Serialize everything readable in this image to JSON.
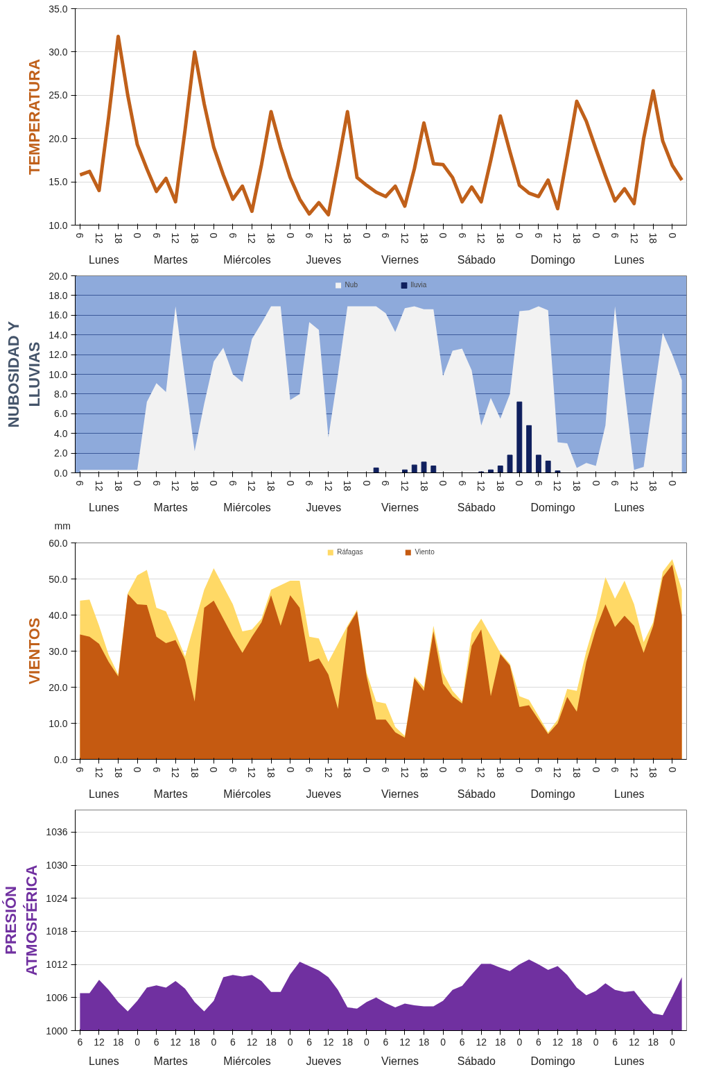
{
  "chart_data": [
    {
      "type": "line",
      "ylabel": "TEMPERATURA",
      "color": "#c0601a",
      "grid": "y",
      "ylim": [
        10,
        35
      ],
      "yticks": [
        {
          "value": 10,
          "label": "10.0"
        },
        {
          "value": 15,
          "label": "15.0"
        },
        {
          "value": 20,
          "label": "20.0"
        },
        {
          "value": 25,
          "label": "25.0"
        },
        {
          "value": 30,
          "label": "30.0"
        },
        {
          "value": 35,
          "label": "35.0"
        }
      ],
      "categories": [
        "6",
        null,
        "12",
        null,
        "18",
        null,
        "0",
        null,
        "6",
        null,
        "12",
        null,
        "18",
        null,
        "0",
        null,
        "6",
        null,
        "12",
        null,
        "18",
        null,
        "0",
        null,
        "6",
        null,
        "12",
        null,
        "18",
        null,
        "0",
        null,
        "6",
        null,
        "12",
        null,
        "18",
        null,
        "0",
        null,
        "6",
        null,
        "12",
        null,
        "18",
        null,
        "0",
        null,
        "6",
        null,
        "12",
        null,
        "18",
        null,
        "0",
        null,
        "6",
        null,
        "12",
        null,
        "18",
        null,
        "0",
        null
      ],
      "values": [
        15.8,
        16.2,
        14.0,
        22.5,
        31.8,
        25.0,
        19.3,
        16.5,
        13.9,
        15.4,
        12.7,
        21.0,
        30.0,
        24.0,
        19.0,
        15.8,
        13.0,
        14.5,
        11.6,
        17.0,
        23.1,
        19.0,
        15.5,
        13.0,
        11.3,
        12.6,
        11.2,
        17.0,
        23.1,
        15.5,
        14.6,
        13.8,
        13.3,
        14.5,
        12.2,
        16.5,
        21.8,
        17.1,
        17.0,
        15.5,
        12.7,
        14.4,
        12.7,
        17.5,
        22.6,
        18.5,
        14.6,
        13.7,
        13.3,
        15.2,
        11.9,
        18.0,
        24.3,
        22.0,
        18.8,
        15.7,
        12.8,
        14.2,
        12.5,
        20.0,
        25.5,
        19.7,
        16.9,
        15.2
      ],
      "annotations": [
        "Lunes",
        "Martes",
        "Miércoles",
        "Jueves",
        "Viernes",
        "Sábado",
        "Domingo",
        "Lunes"
      ]
    },
    {
      "type": "area",
      "ylabel": "NUBOSIDAD Y\nLLUVIAS",
      "grid": "y",
      "legend": "top",
      "ylim": [
        0,
        20
      ],
      "yticks": [
        {
          "value": 0,
          "label": "0.0"
        },
        {
          "value": 2,
          "label": "2.0"
        },
        {
          "value": 4,
          "label": "4.0"
        },
        {
          "value": 6,
          "label": "6.0"
        },
        {
          "value": 8,
          "label": "8.0"
        },
        {
          "value": 10,
          "label": "10.0"
        },
        {
          "value": 12,
          "label": "12.0"
        },
        {
          "value": 14,
          "label": "14.0"
        },
        {
          "value": 16,
          "label": "16.0"
        },
        {
          "value": 18,
          "label": "18.0"
        },
        {
          "value": 20,
          "label": "20.0"
        }
      ],
      "categories": [
        "6",
        null,
        "12",
        null,
        "18",
        null,
        "0",
        null,
        "6",
        null,
        "12",
        null,
        "18",
        null,
        "0",
        null,
        "6",
        null,
        "12",
        null,
        "18",
        null,
        "0",
        null,
        "6",
        null,
        "12",
        null,
        "18",
        null,
        "0",
        null,
        "6",
        null,
        "12",
        null,
        "18",
        null,
        "0",
        null,
        "6",
        null,
        "12",
        null,
        "18",
        null,
        "0",
        null,
        "6",
        null,
        "12",
        null,
        "18",
        null,
        "0",
        null,
        "6",
        null,
        "12",
        null,
        "18",
        null,
        "0",
        null
      ],
      "series": [
        {
          "name": "Nub",
          "type": "area",
          "color": "#f2f2f2",
          "values": [
            0.3,
            0.3,
            0.3,
            0.3,
            0.3,
            0.3,
            0.3,
            7.2,
            9.1,
            8.2,
            16.9,
            9.5,
            2.2,
            7.0,
            11.3,
            12.7,
            10.0,
            9.2,
            13.6,
            15.2,
            16.9,
            16.9,
            7.4,
            8.0,
            15.3,
            14.5,
            3.6,
            10.0,
            16.9,
            16.9,
            16.9,
            16.9,
            16.2,
            14.3,
            16.7,
            16.9,
            16.6,
            16.6,
            9.8,
            12.4,
            12.6,
            10.4,
            4.8,
            7.6,
            5.5,
            8.0,
            16.4,
            16.5,
            16.9,
            16.5,
            3.1,
            3.0,
            0.5,
            1.0,
            0.7,
            4.8,
            16.9,
            8.5,
            0.3,
            0.6,
            7.5,
            14.2,
            12.0,
            9.4
          ]
        },
        {
          "name": "lluvia",
          "type": "bar",
          "color": "#10205e",
          "values": [
            null,
            null,
            null,
            null,
            null,
            null,
            null,
            null,
            null,
            null,
            null,
            null,
            null,
            null,
            null,
            null,
            null,
            null,
            null,
            null,
            null,
            null,
            null,
            null,
            null,
            null,
            null,
            null,
            null,
            null,
            null,
            0.5,
            null,
            null,
            0.3,
            0.8,
            1.1,
            0.7,
            null,
            null,
            null,
            null,
            0.1,
            0.3,
            0.7,
            1.8,
            7.2,
            4.8,
            1.8,
            1.2,
            0.2,
            null,
            null,
            null,
            null,
            null,
            null,
            null,
            null,
            null,
            null,
            null,
            null,
            null
          ]
        }
      ],
      "annotations": [
        "Lunes",
        "Martes",
        "Miércoles",
        "Jueves",
        "Viernes",
        "Sábado",
        "Domingo",
        "Lunes",
        "mm"
      ]
    },
    {
      "type": "area",
      "ylabel": "VIENTOS",
      "grid": "y",
      "legend": "top",
      "ylim": [
        0,
        60
      ],
      "yticks": [
        {
          "value": 0,
          "label": "0.0"
        },
        {
          "value": 10,
          "label": "10.0"
        },
        {
          "value": 20,
          "label": "20.0"
        },
        {
          "value": 30,
          "label": "30.0"
        },
        {
          "value": 40,
          "label": "40.0"
        },
        {
          "value": 50,
          "label": "50.0"
        },
        {
          "value": 60,
          "label": "60.0"
        }
      ],
      "categories": [
        "6",
        null,
        "12",
        null,
        "18",
        null,
        "0",
        null,
        "6",
        null,
        "12",
        null,
        "18",
        null,
        "0",
        null,
        "6",
        null,
        "12",
        null,
        "18",
        null,
        "0",
        null,
        "6",
        null,
        "12",
        null,
        "18",
        null,
        "0",
        null,
        "6",
        null,
        "12",
        null,
        "18",
        null,
        "0",
        null,
        "6",
        null,
        "12",
        null,
        "18",
        null,
        "0",
        null,
        "6",
        null,
        "12",
        null,
        "18",
        null,
        "0",
        null,
        "6",
        null,
        "12",
        null,
        "18",
        null,
        "0",
        null
      ],
      "series": [
        {
          "name": "Ráfagas",
          "color": "#ffd966",
          "values": [
            44.0,
            44.3,
            37,
            29,
            23.5,
            46,
            51,
            52.5,
            42,
            41,
            35,
            28.5,
            null,
            47,
            53,
            48,
            43,
            35.5,
            36,
            39,
            47,
            null,
            49.5,
            49.5,
            34,
            33.5,
            27,
            null,
            37,
            41.5,
            24,
            16,
            15.5,
            9,
            6.5,
            23,
            20,
            37,
            24,
            19,
            16,
            35,
            39,
            null,
            29.5,
            26.5,
            17.5,
            16.5,
            12,
            7.5,
            11,
            19.5,
            19,
            30,
            39,
            50.5,
            44.5,
            49.5,
            43,
            32.5,
            38,
            52,
            55.5,
            47
          ]
        },
        {
          "name": "Viento",
          "color": "#c55a11",
          "values": [
            34.6,
            34.0,
            32.0,
            27.0,
            23.0,
            45.8,
            43.0,
            42.8,
            34.0,
            32.2,
            33.1,
            27.6,
            16.0,
            42.0,
            44.0,
            39.0,
            34.0,
            29.5,
            34.0,
            38.0,
            45.5,
            37.0,
            45.5,
            42.0,
            27.0,
            28.0,
            23.5,
            14.0,
            36.5,
            41.0,
            23.0,
            11.0,
            11.0,
            7.5,
            6.0,
            22.5,
            19.0,
            35.5,
            21.0,
            17.5,
            15.5,
            31.5,
            36.0,
            17.5,
            29.2,
            26.0,
            14.5,
            15.0,
            11.0,
            7.0,
            10.0,
            17.3,
            13.2,
            27.0,
            36.0,
            43.0,
            36.7,
            39.8,
            37.0,
            29.5,
            37.0,
            50.5,
            54.0,
            40.0
          ]
        }
      ],
      "annotations": [
        "Lunes",
        "Martes",
        "Miércoles",
        "Jueves",
        "Viernes",
        "Sábado",
        "Domingo",
        "Lunes"
      ]
    },
    {
      "type": "area",
      "ylabel": "PRESIÓN\nATMOSFÉRICA",
      "color": "#7030a0",
      "grid": "y",
      "ylim": [
        1000,
        1040
      ],
      "yticks": [
        1000,
        1006,
        1012,
        1018,
        1024,
        1030,
        1036
      ],
      "categories": [
        "6",
        null,
        "12",
        null,
        "18",
        null,
        "0",
        null,
        "6",
        null,
        "12",
        null,
        "18",
        null,
        "0",
        null,
        "6",
        null,
        "12",
        null,
        "18",
        null,
        "0",
        null,
        "6",
        null,
        "12",
        null,
        "18",
        null,
        "0",
        null,
        "6",
        null,
        "12",
        null,
        "18",
        null,
        "0",
        null,
        "6",
        null,
        "12",
        null,
        "18",
        null,
        "0",
        null,
        "6",
        null,
        "12",
        null,
        "18",
        null,
        "0",
        null,
        "6",
        null,
        "12",
        null,
        "18",
        null,
        "0",
        null
      ],
      "values": [
        1006.8,
        1006.8,
        1009.2,
        1007.4,
        1005.2,
        1003.5,
        1005.4,
        1007.8,
        1008.2,
        1007.8,
        1009.0,
        1007.6,
        1005.2,
        1003.5,
        1005.4,
        1009.7,
        1010.1,
        1009.8,
        1010.1,
        1009.0,
        1007.0,
        1007.0,
        1010.2,
        1012.5,
        1011.7,
        1010.9,
        1009.7,
        1007.4,
        1004.2,
        1004.0,
        1005.2,
        1006.0,
        1005.0,
        1004.2,
        1004.9,
        1004.6,
        1004.4,
        1004.4,
        1005.4,
        1007.4,
        1008.1,
        1010.2,
        1012.1,
        1012.1,
        1011.4,
        1010.8,
        1012.0,
        1012.9,
        1012.0,
        1011.0,
        1011.7,
        1010.1,
        1007.8,
        1006.4,
        1007.2,
        1008.6,
        1007.4,
        1007.0,
        1007.2,
        1005.0,
        1003.1,
        1002.8,
        1006.2,
        1009.7
      ],
      "annotations": [
        "Lunes",
        "Martes",
        "Miércoles",
        "Jueves",
        "Viernes",
        "Sábado",
        "Domingo",
        "Lunes"
      ]
    }
  ]
}
